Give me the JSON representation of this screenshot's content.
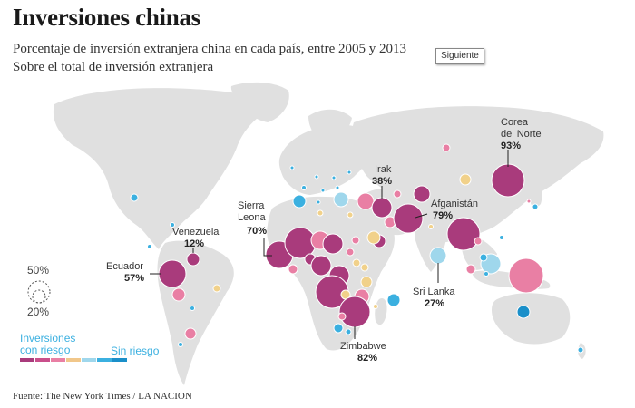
{
  "header": {
    "title": "Inversiones chinas",
    "subtitle": "Porcentaje de inversión extranjera china en cada país, entre 2005 y 2013",
    "subtitle2": "Sobre el total de inversión extranjera"
  },
  "nav": {
    "next_label": "Siguiente"
  },
  "legend": {
    "size_50": "50%",
    "size_20": "20%",
    "risk_label_line1": "Inversiones",
    "risk_label_line2": "con riesgo",
    "no_risk_label": "Sin riesgo",
    "scale_colors": [
      "#a93b7c",
      "#c94f8b",
      "#e97fa4",
      "#f1c78a",
      "#9fd7ec",
      "#3bb0e0",
      "#1a8fc9"
    ]
  },
  "source": "Fuente: The New York Times / LA NACION",
  "colors": {
    "land": "#e0e0e0",
    "high_risk": "#a93b7c",
    "mid_risk": "#e97fa4",
    "low_risk": "#3bb0e0",
    "neutral": "#f1d18a"
  },
  "callouts": {
    "venezuela": {
      "name": "Venezuela",
      "pct": "12%"
    },
    "ecuador": {
      "name": "Ecuador",
      "pct": "57%"
    },
    "sierra_leona_l1": "Sierra",
    "sierra_leona_l2": "Leona",
    "sierra_leona_pct": "70%",
    "irak": {
      "name": "Irak",
      "pct": "38%"
    },
    "afganistan": {
      "name": "Afganistán",
      "pct": "79%"
    },
    "corea_l1": "Corea",
    "corea_l2": "del Norte",
    "corea_pct": "93%",
    "sri_lanka": {
      "name": "Sri Lanka",
      "pct": "27%"
    },
    "zimbabwe": {
      "name": "Zimbabwe",
      "pct": "82%"
    }
  }
}
